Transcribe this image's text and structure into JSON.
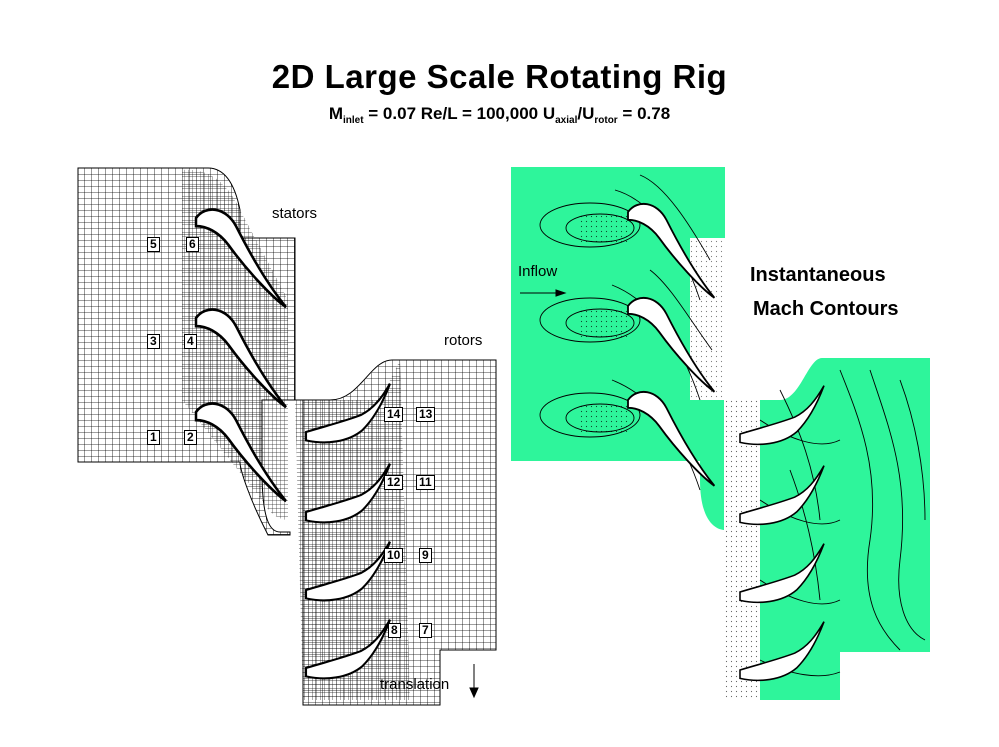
{
  "title": "2D Large Scale Rotating Rig",
  "subtitle": {
    "m": "M",
    "m_sub": "inlet",
    "m_val": " = 0.07  Re/L = 100,000  U",
    "u1_sub": "axial",
    "slash": "/U",
    "u2_sub": "rotor",
    "u_val": " = 0.78"
  },
  "labels": {
    "stators": "stators",
    "rotors": "rotors",
    "translation": "translation",
    "inflow": "Inflow",
    "mach_line1": "Instantaneous",
    "mach_line2": "Mach Contours"
  },
  "block_numbers": {
    "b1": "1",
    "b2": "2",
    "b3": "3",
    "b4": "4",
    "b5": "5",
    "b6": "6",
    "b7": "7",
    "b8": "8",
    "b9": "9",
    "b10": "10",
    "b11": "11",
    "b12": "12",
    "b13": "13",
    "b14": "14"
  },
  "colors": {
    "flow_field": "#2ef59b",
    "grid_line": "#000000",
    "blade": "#ffffff"
  }
}
